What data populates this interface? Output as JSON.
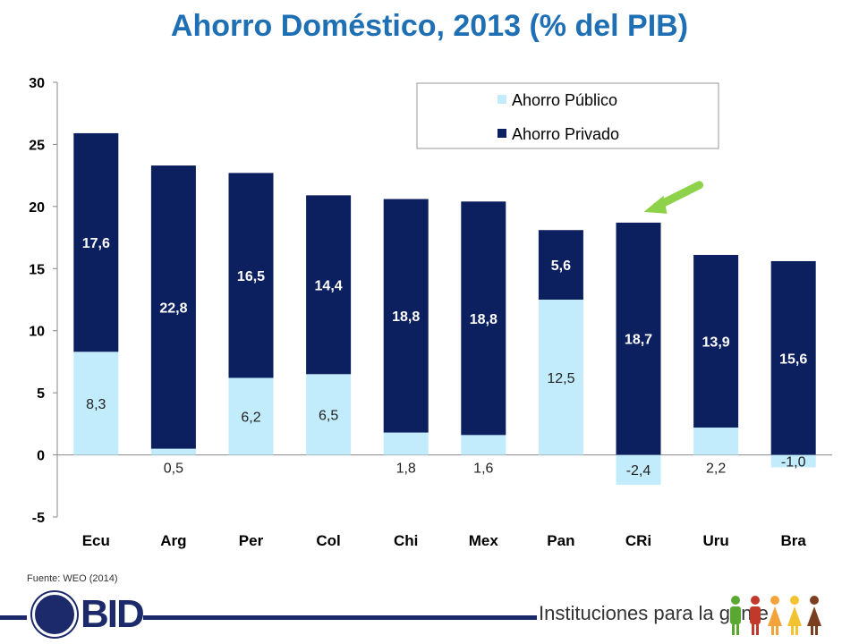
{
  "title": "Ahorro Doméstico, 2013 (% del PIB)",
  "source": "Fuente: WEO (2014)",
  "logo_text": "BID",
  "slogan": "Instituciones para la gente",
  "colors": {
    "title": "#1f6fb5",
    "publico": "#c2ecfb",
    "privado": "#0c1f5e",
    "arrow": "#8ed24a",
    "footer": "#1c2a6b"
  },
  "icons": [
    "globe-logo-icon",
    "people-figures-icon",
    "highlight-arrow-icon"
  ],
  "chart_data": {
    "type": "bar",
    "stacked": true,
    "categories": [
      "Ecu",
      "Arg",
      "Per",
      "Col",
      "Chi",
      "Mex",
      "Pan",
      "CRi",
      "Uru",
      "Bra"
    ],
    "series": [
      {
        "name": "Ahorro Público",
        "values": [
          8.3,
          0.5,
          6.2,
          6.5,
          1.8,
          1.6,
          12.5,
          -2.4,
          2.2,
          -1.0
        ],
        "labels": [
          "8,3",
          "0,5",
          "6,2",
          "6,5",
          "1,8",
          "1,6",
          "12,5",
          "-2,4",
          "2,2",
          "-1,0"
        ]
      },
      {
        "name": "Ahorro Privado",
        "values": [
          17.6,
          22.8,
          16.5,
          14.4,
          18.8,
          18.8,
          5.6,
          18.7,
          13.9,
          15.6
        ],
        "labels": [
          "17,6",
          "22,8",
          "16,5",
          "14,4",
          "18,8",
          "18,8",
          "5,6",
          "18,7",
          "13,9",
          "15,6"
        ]
      }
    ],
    "ylim": [
      -5,
      30
    ],
    "yticks": [
      -5,
      0,
      5,
      10,
      15,
      20,
      25,
      30
    ],
    "ytick_labels": [
      "-5",
      "0",
      "5",
      "10",
      "15",
      "20",
      "25",
      "30"
    ],
    "legend_position": "top-right",
    "grid": false,
    "highlight_category": "CRi"
  }
}
